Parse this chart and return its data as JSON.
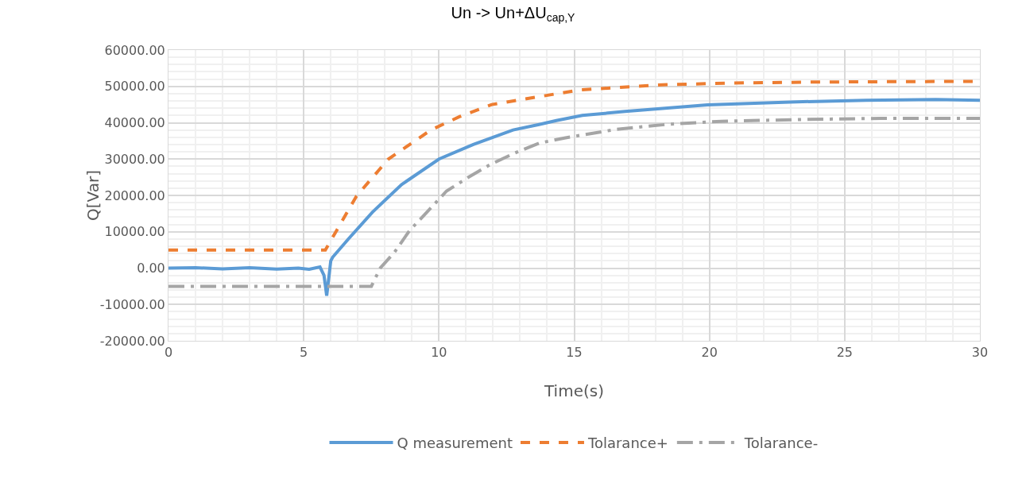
{
  "chart_data": {
    "type": "line",
    "title": "Un -> Un+ΔU$_{cap,Y}$",
    "xlabel": "Time(s)",
    "ylabel": "Q[Var]",
    "xlim": [
      0,
      30
    ],
    "xticks": [
      0,
      5,
      10,
      15,
      20,
      25,
      30
    ],
    "ylim": [
      -20000,
      60000
    ],
    "yticks": [
      {
        "value": -20000,
        "label": "-20000.00"
      },
      {
        "value": -10000,
        "label": "-10000.00"
      },
      {
        "value": 0,
        "label": "0.00"
      },
      {
        "value": 10000,
        "label": "10000.00"
      },
      {
        "value": 20000,
        "label": "20000.00"
      },
      {
        "value": 30000,
        "label": "30000.00"
      },
      {
        "value": 40000,
        "label": "40000.00"
      },
      {
        "value": 50000,
        "label": "50000.00"
      },
      {
        "value": 60000,
        "label": "60000.00"
      }
    ],
    "grid": true,
    "legend": "bottom",
    "marker": "none",
    "series": [
      {
        "name": "Q measurement",
        "color": "#5b9bd5",
        "line_style": "solid",
        "x": [
          0,
          1,
          2,
          3,
          4,
          4.8,
          5.2,
          5.6,
          5.75,
          5.85,
          6.0,
          6.07,
          6.66,
          7.54,
          8.62,
          10.0,
          11.27,
          12.74,
          13.7,
          14.34,
          15.3,
          16.88,
          19.93,
          22.98,
          25.8,
          28.37,
          30
        ],
        "values": [
          0,
          100,
          -200,
          100,
          -300,
          0,
          -300,
          300,
          -2000,
          -7600,
          2000,
          3000,
          8100,
          15400,
          23000,
          30000,
          34000,
          38000,
          39500,
          40600,
          42000,
          43100,
          44900,
          45700,
          46200,
          46400,
          46200
        ]
      },
      {
        "name": "Tolarance+",
        "color": "#ed7d31",
        "line_style": "dashed",
        "x": [
          0,
          5.8,
          6.95,
          8.13,
          9.7,
          10.77,
          11.95,
          15.18,
          18.1,
          20.6,
          24,
          30
        ],
        "values": [
          5000,
          5000,
          19800,
          30000,
          38000,
          41700,
          45000,
          49000,
          50400,
          50900,
          51200,
          51400
        ]
      },
      {
        "name": "Tolarance-",
        "color": "#a5a5a5",
        "line_style": "dashdot",
        "x": [
          0,
          7.5,
          7.83,
          8.35,
          8.91,
          9.58,
          10.28,
          11.07,
          11.9,
          12.78,
          13.71,
          14.64,
          16.57,
          18.5,
          20.44,
          23.5,
          26.34,
          30
        ],
        "values": [
          -5000,
          -5000,
          0,
          4300,
          10300,
          15600,
          21200,
          24900,
          28500,
          31600,
          34400,
          35800,
          38200,
          39600,
          40400,
          40900,
          41200,
          41200
        ]
      }
    ]
  }
}
